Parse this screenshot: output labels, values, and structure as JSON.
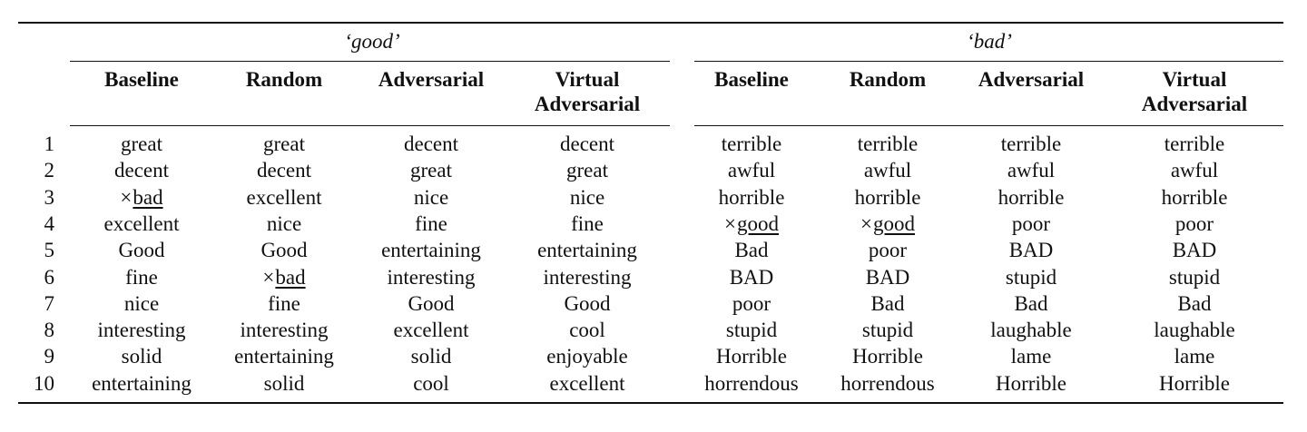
{
  "groups": [
    {
      "label": "‘good’"
    },
    {
      "label": "‘bad’"
    }
  ],
  "columns": [
    "Baseline",
    "Random",
    "Adversarial",
    "Virtual Adversarial",
    "Baseline",
    "Random",
    "Adversarial",
    "Virtual Adversarial"
  ],
  "column_lines": [
    [
      "Baseline"
    ],
    [
      "Random"
    ],
    [
      "Adversarial"
    ],
    [
      "Virtual",
      "Adversarial"
    ],
    [
      "Baseline"
    ],
    [
      "Random"
    ],
    [
      "Adversarial"
    ],
    [
      "Virtual",
      "Adversarial"
    ]
  ],
  "rows": [
    {
      "n": "1",
      "cells": [
        "great",
        "great",
        "decent",
        "decent",
        "terrible",
        "terrible",
        "terrible",
        "terrible"
      ]
    },
    {
      "n": "2",
      "cells": [
        "decent",
        "decent",
        "great",
        "great",
        "awful",
        "awful",
        "awful",
        "awful"
      ]
    },
    {
      "n": "3",
      "cells": [
        "×bad",
        "excellent",
        "nice",
        "nice",
        "horrible",
        "horrible",
        "horrible",
        "horrible"
      ]
    },
    {
      "n": "4",
      "cells": [
        "excellent",
        "nice",
        "fine",
        "fine",
        "×good",
        "×good",
        "poor",
        "poor"
      ]
    },
    {
      "n": "5",
      "cells": [
        "Good",
        "Good",
        "entertaining",
        "entertaining",
        "Bad",
        "poor",
        "BAD",
        "BAD"
      ]
    },
    {
      "n": "6",
      "cells": [
        "fine",
        "×bad",
        "interesting",
        "interesting",
        "BAD",
        "BAD",
        "stupid",
        "stupid"
      ]
    },
    {
      "n": "7",
      "cells": [
        "nice",
        "fine",
        "Good",
        "Good",
        "poor",
        "Bad",
        "Bad",
        "Bad"
      ]
    },
    {
      "n": "8",
      "cells": [
        "interesting",
        "interesting",
        "excellent",
        "cool",
        "stupid",
        "stupid",
        "laughable",
        "laughable"
      ]
    },
    {
      "n": "9",
      "cells": [
        "solid",
        "entertaining",
        "solid",
        "enjoyable",
        "Horrible",
        "Horrible",
        "lame",
        "lame"
      ]
    },
    {
      "n": "10",
      "cells": [
        "entertaining",
        "solid",
        "cool",
        "excellent",
        "horrendous",
        "horrendous",
        "Horrible",
        "Horrible"
      ]
    }
  ]
}
